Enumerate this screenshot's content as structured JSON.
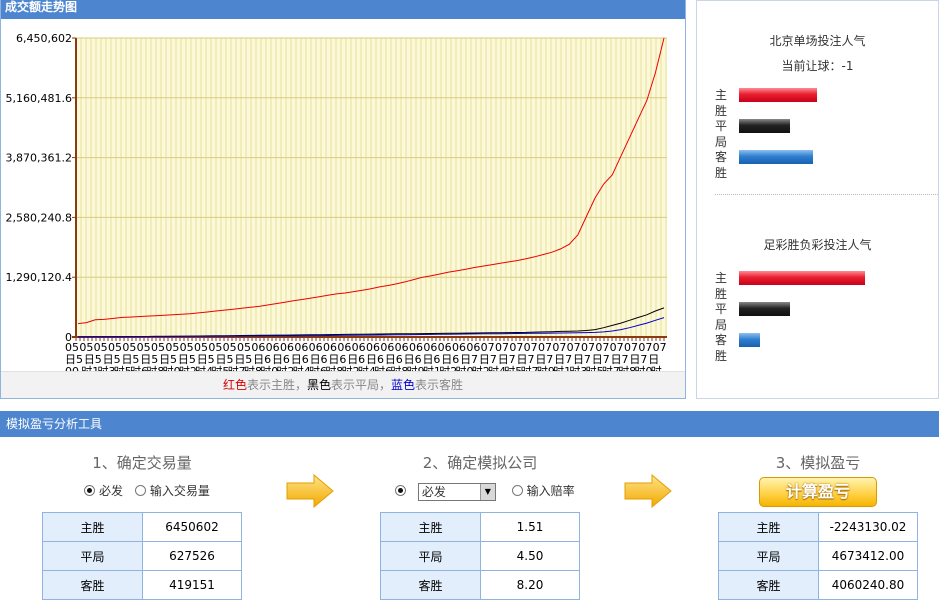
{
  "chart_panel": {
    "title": "成交额走势图",
    "legend": {
      "red": "红色",
      "red_text": "表示主胜，",
      "black": "黑色",
      "black_text": "表示平局，",
      "blue": "蓝色",
      "blue_text": "表示客胜"
    }
  },
  "chart_data": {
    "type": "line",
    "y_ticks": [
      "6,450,602",
      "5,160,481.6",
      "3,870,361.2",
      "2,580,240.8",
      "1,290,120.4",
      "0"
    ],
    "ylim": [
      0,
      6450602
    ],
    "x_top_labels": [
      "05",
      "05",
      "05",
      "05",
      "05",
      "05",
      "05",
      "05",
      "05",
      "05",
      "05",
      "05",
      "05",
      "06",
      "06",
      "06",
      "06",
      "06",
      "06",
      "06",
      "06",
      "06",
      "06",
      "06",
      "06",
      "06",
      "06",
      "06",
      "06",
      "07",
      "07",
      "07",
      "07",
      "07",
      "07",
      "07",
      "07",
      "07",
      "07",
      "07",
      "07",
      "07"
    ],
    "x_tick_row1": [
      "日5",
      "日5",
      "日5",
      "日5",
      "日5",
      "日5",
      "日5",
      "日5",
      "日5",
      "日5",
      "日6",
      "日6",
      "日6",
      "日6",
      "日6",
      "日6",
      "日6",
      "日6",
      "日6",
      "日6",
      "日6",
      "日7",
      "日7",
      "日7",
      "日7",
      "日7",
      "日7",
      "日7",
      "日7",
      "日7",
      "日7",
      "日"
    ],
    "x_tick_row2": [
      "00",
      "时1",
      "时3",
      "时5",
      "时6",
      "时8",
      "时0",
      "时2",
      "时4",
      "时5",
      "时7",
      "时8",
      "时0",
      "时2",
      "时4",
      "时6",
      "时8",
      "时2",
      "时4",
      "时6",
      "时8",
      "时9",
      "时1",
      "时2",
      "时0",
      "时2",
      "时4",
      "时5",
      "时7",
      "时9",
      "时1",
      "时3",
      "时5",
      "时7",
      "时8",
      "时0",
      "时"
    ],
    "series": [
      {
        "color": "#ee0000",
        "values": [
          290000,
          310000,
          370000,
          380000,
          400000,
          420000,
          430000,
          440000,
          450000,
          460000,
          470000,
          480000,
          490000,
          500000,
          520000,
          540000,
          560000,
          580000,
          600000,
          620000,
          640000,
          660000,
          690000,
          720000,
          750000,
          780000,
          810000,
          840000,
          870000,
          900000,
          930000,
          950000,
          980000,
          1010000,
          1040000,
          1080000,
          1110000,
          1150000,
          1190000,
          1240000,
          1290000,
          1320000,
          1360000,
          1400000,
          1430000,
          1460000,
          1500000,
          1530000,
          1560000,
          1590000,
          1620000,
          1650000,
          1690000,
          1730000,
          1780000,
          1830000,
          1900000,
          2000000,
          2200000,
          2600000,
          3000000,
          3300000,
          3500000,
          3900000,
          4300000,
          4700000,
          5100000,
          5700000,
          6450602
        ]
      },
      {
        "color": "#000000",
        "values": [
          2000,
          3000,
          4000,
          5000,
          6000,
          7000,
          8000,
          9000,
          10000,
          12000,
          14000,
          16000,
          18000,
          20000,
          22000,
          24000,
          26000,
          28000,
          30000,
          32000,
          34000,
          36000,
          38000,
          40000,
          42000,
          44000,
          46000,
          48000,
          50000,
          52000,
          54000,
          56000,
          58000,
          60000,
          62000,
          64000,
          66000,
          68000,
          70000,
          72000,
          74000,
          76000,
          78000,
          80000,
          82000,
          84000,
          86000,
          88000,
          90000,
          92000,
          95000,
          98000,
          100000,
          105000,
          110000,
          115000,
          120000,
          125000,
          130000,
          140000,
          160000,
          200000,
          250000,
          300000,
          360000,
          420000,
          480000,
          560000,
          627526
        ]
      },
      {
        "color": "#0000cc",
        "values": [
          3000,
          4000,
          5000,
          6000,
          7000,
          8000,
          9000,
          10000,
          11000,
          12000,
          13000,
          14000,
          15000,
          16000,
          17000,
          18000,
          19000,
          20000,
          21000,
          22000,
          23000,
          24000,
          25000,
          26000,
          27000,
          28000,
          29000,
          30000,
          31000,
          32000,
          34000,
          36000,
          38000,
          40000,
          42000,
          44000,
          46000,
          48000,
          50000,
          52000,
          54000,
          56000,
          58000,
          60000,
          62000,
          64000,
          66000,
          68000,
          70000,
          72000,
          74000,
          76000,
          78000,
          80000,
          82000,
          84000,
          86000,
          88000,
          92000,
          96000,
          100000,
          110000,
          130000,
          160000,
          200000,
          250000,
          300000,
          360000,
          419151
        ]
      }
    ]
  },
  "popularity": {
    "beijing": {
      "title": "北京单场投注人气",
      "handicap": "当前让球：-1",
      "rows": [
        {
          "label": "主胜",
          "value": 0.52,
          "color": "red"
        },
        {
          "label": "平局",
          "value": 0.34,
          "color": "black"
        },
        {
          "label": "客胜",
          "value": 0.49,
          "color": "blue"
        }
      ]
    },
    "zucai": {
      "title": "足彩胜负彩投注人气",
      "rows": [
        {
          "label": "主胜",
          "value": 0.84,
          "color": "red"
        },
        {
          "label": "平局",
          "value": 0.34,
          "color": "black"
        },
        {
          "label": "客胜",
          "value": 0.14,
          "color": "blue"
        }
      ]
    }
  },
  "tool": {
    "header": "模拟盈亏分析工具",
    "step1": {
      "title": "1、确定交易量",
      "opt_a": "必发",
      "opt_b": "输入交易量",
      "rows": [
        {
          "k": "主胜",
          "v": "6450602"
        },
        {
          "k": "平局",
          "v": "627526"
        },
        {
          "k": "客胜",
          "v": "419151"
        }
      ]
    },
    "step2": {
      "title": "2、确定模拟公司",
      "select_value": "必发",
      "opt_b": "输入赔率",
      "rows": [
        {
          "k": "主胜",
          "v": "1.51"
        },
        {
          "k": "平局",
          "v": "4.50"
        },
        {
          "k": "客胜",
          "v": "8.20"
        }
      ]
    },
    "step3": {
      "title": "3、模拟盈亏",
      "button": "计算盈亏",
      "rows": [
        {
          "k": "主胜",
          "v": "-2243130.02"
        },
        {
          "k": "平局",
          "v": "4673412.00"
        },
        {
          "k": "客胜",
          "v": "4060240.80"
        }
      ]
    }
  }
}
